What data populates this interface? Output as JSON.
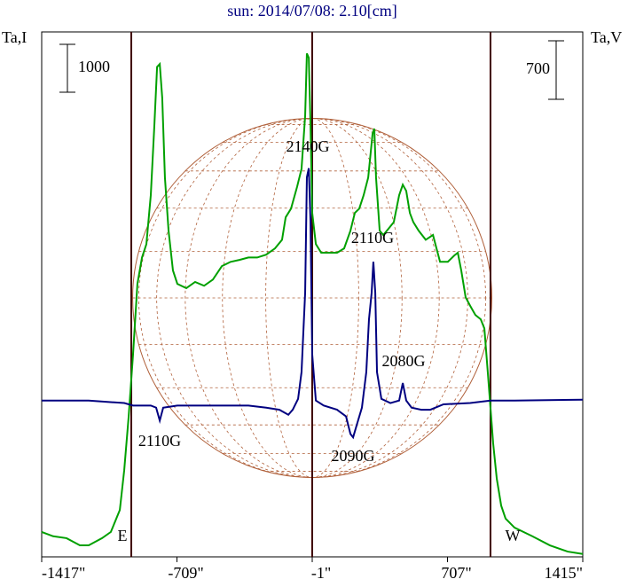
{
  "chart_data": {
    "type": "line",
    "title": "sun: 2014/07/08: 2.10[cm]",
    "y_label": "Ta,I",
    "y2_label": "Ta,V",
    "xlim": [
      -1417,
      1415
    ],
    "xticks": [
      {
        "value": -1417,
        "label": "-1417\""
      },
      {
        "value": -709,
        "label": "-709\""
      },
      {
        "value": -1,
        "label": "-1\""
      },
      {
        "value": 707,
        "label": "707\""
      },
      {
        "value": 1415,
        "label": "1415\""
      }
    ],
    "ylim": [
      0,
      10960
    ],
    "y2lim": [
      -1880,
      4400
    ],
    "scale_bars": [
      {
        "value": 1000,
        "axis": "y"
      },
      {
        "value": 700,
        "axis": "y2"
      }
    ],
    "vlines": [
      -948,
      -1,
      932
    ],
    "limb_labels": [
      "E",
      "W"
    ],
    "annotations": [
      "2140G",
      "2110G",
      "2080G",
      "2110G",
      "2090G"
    ],
    "series": [
      {
        "name": "I",
        "color": "#00a000",
        "x": [
          -1417,
          -1357,
          -1287,
          -1217,
          -1171,
          -1101,
          -1055,
          -1008,
          -985,
          -962,
          -939,
          -916,
          -892,
          -869,
          -846,
          -827,
          -813,
          -799,
          -786,
          -772,
          -753,
          -730,
          -707,
          -660,
          -614,
          -567,
          -521,
          -474,
          -428,
          -382,
          -335,
          -289,
          -242,
          -196,
          -159,
          -140,
          -112,
          -80,
          -57,
          -38,
          -29,
          -19,
          -10,
          -1,
          18,
          46,
          83,
          129,
          166,
          199,
          222,
          245,
          268,
          292,
          315,
          324,
          333,
          352,
          371,
          398,
          426,
          454,
          473,
          491,
          510,
          528,
          556,
          593,
          631,
          668,
          709,
          742,
          761,
          779,
          802,
          826,
          853,
          881,
          900,
          918,
          932,
          946,
          965,
          988,
          1011,
          1058,
          1151,
          1243,
          1336,
          1415
        ],
        "values": [
          520,
          430,
          390,
          240,
          240,
          390,
          520,
          980,
          1810,
          2920,
          4220,
          5700,
          6250,
          6530,
          7550,
          9030,
          10230,
          10290,
          9580,
          7920,
          6810,
          5980,
          5700,
          5610,
          5740,
          5660,
          5790,
          6070,
          6160,
          6200,
          6250,
          6250,
          6310,
          6440,
          6620,
          7090,
          7270,
          7730,
          8100,
          9210,
          10510,
          10420,
          9030,
          7180,
          6530,
          6350,
          6350,
          6350,
          6440,
          6810,
          7180,
          7270,
          7550,
          7920,
          8840,
          8940,
          7920,
          6810,
          6720,
          6850,
          6990,
          7550,
          7770,
          7640,
          7180,
          6990,
          6810,
          6620,
          6720,
          6160,
          6160,
          6290,
          6350,
          5980,
          5420,
          5240,
          5050,
          4960,
          4770,
          3850,
          3110,
          2370,
          1630,
          1070,
          800,
          610,
          430,
          240,
          110,
          60
        ]
      },
      {
        "name": "V",
        "color": "#000080",
        "axis": "y2",
        "x": [
          -1417,
          -1171,
          -985,
          -939,
          -846,
          -818,
          -799,
          -781,
          -707,
          -521,
          -335,
          -242,
          -173,
          -126,
          -103,
          -75,
          -57,
          -38,
          -29,
          -19,
          -10,
          -1,
          18,
          59,
          129,
          176,
          199,
          213,
          231,
          259,
          282,
          296,
          310,
          319,
          329,
          338,
          361,
          408,
          454,
          473,
          491,
          519,
          570,
          617,
          686,
          826,
          932,
          1058,
          1415
        ],
        "values": [
          -10,
          -10,
          -40,
          -70,
          -70,
          -95,
          -250,
          -95,
          -70,
          -70,
          -70,
          -95,
          -120,
          -180,
          -120,
          10,
          330,
          1280,
          2660,
          2770,
          2130,
          540,
          -10,
          -70,
          -120,
          -200,
          -410,
          -450,
          -310,
          -95,
          330,
          960,
          1280,
          1650,
          1280,
          330,
          10,
          -40,
          -10,
          200,
          -10,
          -95,
          -120,
          -120,
          -55,
          -40,
          -10,
          -10,
          0
        ]
      }
    ]
  }
}
